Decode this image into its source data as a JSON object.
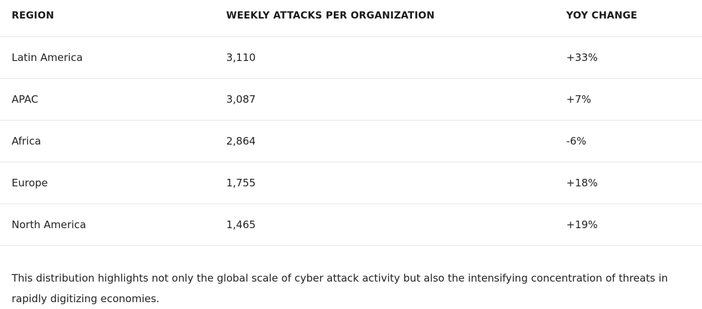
{
  "table": {
    "headers": {
      "region": "REGION",
      "attacks": "WEEKLY ATTACKS PER ORGANIZATION",
      "yoy": "YOY CHANGE"
    },
    "rows": [
      {
        "region": "Latin America",
        "attacks": "3,110",
        "yoy": "+33%"
      },
      {
        "region": "APAC",
        "attacks": "3,087",
        "yoy": "+7%"
      },
      {
        "region": "Africa",
        "attacks": "2,864",
        "yoy": "-6%"
      },
      {
        "region": "Europe",
        "attacks": "1,755",
        "yoy": "+18%"
      },
      {
        "region": "North America",
        "attacks": "1,465",
        "yoy": "+19%"
      }
    ]
  },
  "note": "This distribution highlights not only the global scale of cyber attack activity but also the intensifying concentration of threats in rapidly digitizing economies."
}
